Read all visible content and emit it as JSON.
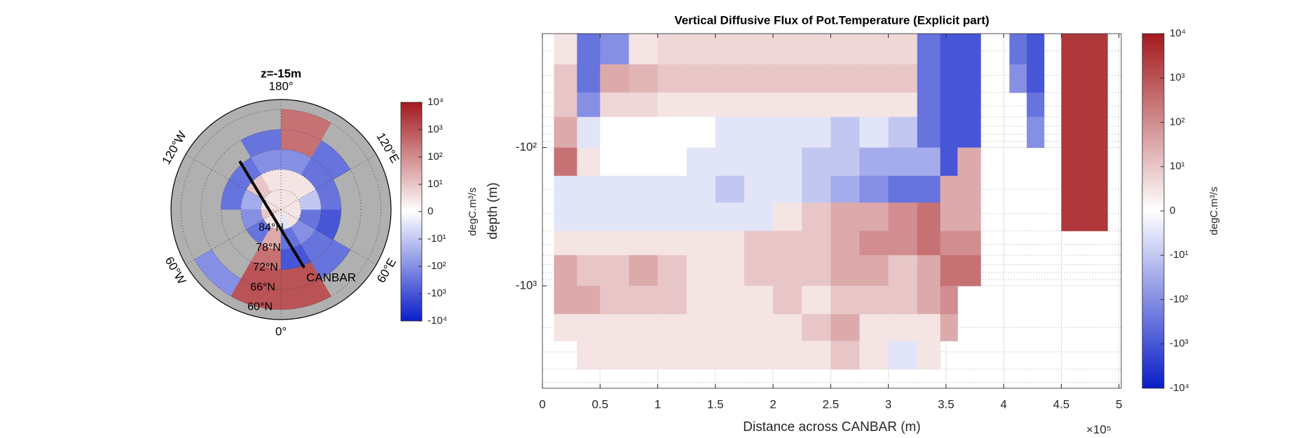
{
  "chart_data": [
    {
      "type": "polar_map",
      "title": "z=-15m",
      "latlim": [
        57,
        90
      ],
      "lat_edges": [
        60,
        66,
        72,
        78,
        84,
        90
      ],
      "lon_edges": [
        -180,
        -150,
        -120,
        -90,
        -60,
        -30,
        0,
        30,
        60,
        90,
        120,
        150,
        180
      ],
      "values": [
        [
          null,
          null,
          null,
          null,
          -100,
          1000,
          1000,
          null,
          null,
          null,
          null,
          300
        ],
        [
          -300,
          null,
          null,
          null,
          null,
          1000,
          1000,
          -300,
          null,
          null,
          -300,
          300
        ],
        [
          -100,
          -300,
          -300,
          null,
          null,
          300,
          -1000,
          -300,
          -1000,
          -300,
          -300,
          -100
        ],
        [
          3,
          10,
          -30,
          -100,
          -300,
          30,
          -300,
          -100,
          -300,
          -10,
          3,
          3
        ],
        [
          3,
          3,
          3,
          10,
          3,
          3,
          -3,
          3,
          3,
          3,
          3,
          3
        ]
      ],
      "lat_ticks": [
        {
          "value": 84,
          "label": "84°N"
        },
        {
          "value": 78,
          "label": "78°N"
        },
        {
          "value": 72,
          "label": "72°N"
        },
        {
          "value": 66,
          "label": "66°N"
        },
        {
          "value": 60,
          "label": "60°N"
        }
      ],
      "lon_ticks": [
        {
          "value": 180,
          "label": "180°"
        },
        {
          "value": 120,
          "label": "120°E"
        },
        {
          "value": 60,
          "label": "60°E"
        },
        {
          "value": 0,
          "label": "0°"
        },
        {
          "value": -60,
          "label": "60°W"
        },
        {
          "value": -120,
          "label": "120°W"
        }
      ],
      "annotation": "CANBAR",
      "scale": "symlog",
      "colormap": [
        "#0a1ec8",
        "#ffffff",
        "#a31a1e"
      ],
      "colorbar": {
        "label": "degC.m³/s",
        "clim": [
          -10000,
          10000
        ],
        "ticks": [
          {
            "value": 10000,
            "label": "10⁴"
          },
          {
            "value": 1000,
            "label": "10³"
          },
          {
            "value": 100,
            "label": "10²"
          },
          {
            "value": 10,
            "label": "10¹"
          },
          0,
          {
            "value": -10,
            "label": "-10¹"
          },
          {
            "value": -100,
            "label": "-10²"
          },
          {
            "value": -1000,
            "label": "-10³"
          },
          {
            "value": -10000,
            "label": "-10⁴"
          }
        ]
      }
    },
    {
      "type": "heatmap",
      "title": "Vertical Diffusive Flux of Pot.Temperature (Explicit part)",
      "xlabel": "Distance across CANBAR (m)",
      "ylabel": "depth (m)",
      "x_exponent_label": "×10⁵",
      "x_edges": [
        0.1,
        0.3,
        0.5,
        0.75,
        1,
        1.25,
        1.5,
        1.75,
        2,
        2.25,
        2.5,
        2.75,
        3,
        3.25,
        3.45,
        3.6,
        3.8,
        4.05,
        4.2,
        4.35,
        4.5,
        4.65,
        4.9
      ],
      "y_edges": [
        -15,
        -25,
        -40,
        -60,
        -100,
        -160,
        -250,
        -400,
        -600,
        -1000,
        -1600,
        -2500,
        -4000
      ],
      "z": [
        [
          3,
          -300,
          -100,
          3,
          5,
          5,
          5,
          5,
          5,
          5,
          5,
          5,
          5,
          -300,
          -1000,
          -1000,
          null,
          -300,
          -1000,
          null,
          3000,
          3000
        ],
        [
          10,
          -300,
          30,
          20,
          10,
          10,
          10,
          10,
          10,
          10,
          10,
          10,
          10,
          -300,
          -1000,
          -1000,
          null,
          -100,
          -1000,
          null,
          3000,
          3000
        ],
        [
          10,
          -100,
          5,
          5,
          3,
          3,
          3,
          3,
          3,
          3,
          3,
          3,
          3,
          -300,
          -1000,
          -1000,
          null,
          null,
          -300,
          null,
          3000,
          3000
        ],
        [
          30,
          -3,
          1,
          1,
          1,
          1,
          -3,
          -3,
          -3,
          -3,
          -10,
          -3,
          -10,
          -300,
          -1000,
          -1000,
          null,
          null,
          -100,
          null,
          3000,
          3000
        ],
        [
          300,
          3,
          1,
          1,
          1,
          -3,
          -3,
          -3,
          -3,
          -10,
          -10,
          -30,
          -30,
          -30,
          -1000,
          30,
          null,
          null,
          null,
          null,
          3000,
          3000
        ],
        [
          -3,
          -3,
          -3,
          -3,
          -3,
          -3,
          -10,
          -3,
          -3,
          -10,
          -30,
          -100,
          -300,
          -300,
          30,
          30,
          null,
          null,
          null,
          null,
          3000,
          3000
        ],
        [
          -3,
          -3,
          -3,
          -3,
          -3,
          -3,
          -3,
          -3,
          3,
          10,
          30,
          30,
          100,
          300,
          30,
          30,
          null,
          null,
          null,
          null,
          3000,
          3000
        ],
        [
          3,
          3,
          3,
          3,
          3,
          3,
          3,
          10,
          10,
          10,
          30,
          100,
          100,
          300,
          100,
          100,
          null,
          null,
          null,
          null,
          null,
          null
        ],
        [
          30,
          10,
          10,
          30,
          10,
          3,
          3,
          10,
          10,
          10,
          30,
          30,
          10,
          30,
          300,
          300,
          null,
          null,
          null,
          null,
          null,
          null
        ],
        [
          30,
          30,
          10,
          10,
          10,
          3,
          3,
          3,
          10,
          3,
          10,
          10,
          10,
          30,
          100,
          null,
          null,
          null,
          null,
          null,
          null,
          null
        ],
        [
          3,
          3,
          3,
          3,
          3,
          3,
          3,
          3,
          3,
          10,
          30,
          3,
          3,
          3,
          30,
          null,
          null,
          null,
          null,
          null,
          null,
          null
        ],
        [
          null,
          3,
          3,
          3,
          3,
          3,
          3,
          3,
          3,
          3,
          10,
          3,
          -3,
          3,
          null,
          null,
          null,
          null,
          null,
          null,
          null,
          null
        ]
      ],
      "xlim": [
        0,
        5.02
      ],
      "ylim": [
        -15,
        -5500
      ],
      "yscale": "log",
      "xticks": [
        0,
        0.5,
        1,
        1.5,
        2,
        2.5,
        3,
        3.5,
        4,
        4.5,
        5
      ],
      "yticks": [
        {
          "value": -100,
          "label": "-10²"
        },
        {
          "value": -1000,
          "label": "-10³"
        }
      ],
      "grid": true,
      "minor_grid": true,
      "scale": "symlog",
      "colormap": [
        "#0a1ec8",
        "#ffffff",
        "#a31a1e"
      ],
      "colorbar": {
        "label": "degC.m³/s",
        "clim": [
          -10000,
          10000
        ],
        "ticks": [
          {
            "value": 10000,
            "label": "10⁴"
          },
          {
            "value": 1000,
            "label": "10³"
          },
          {
            "value": 100,
            "label": "10²"
          },
          {
            "value": 10,
            "label": "10¹"
          },
          0,
          {
            "value": -10,
            "label": "-10¹"
          },
          {
            "value": -100,
            "label": "-10²"
          },
          {
            "value": -1000,
            "label": "-10³"
          },
          {
            "value": -10000,
            "label": "-10⁴"
          }
        ]
      }
    }
  ]
}
